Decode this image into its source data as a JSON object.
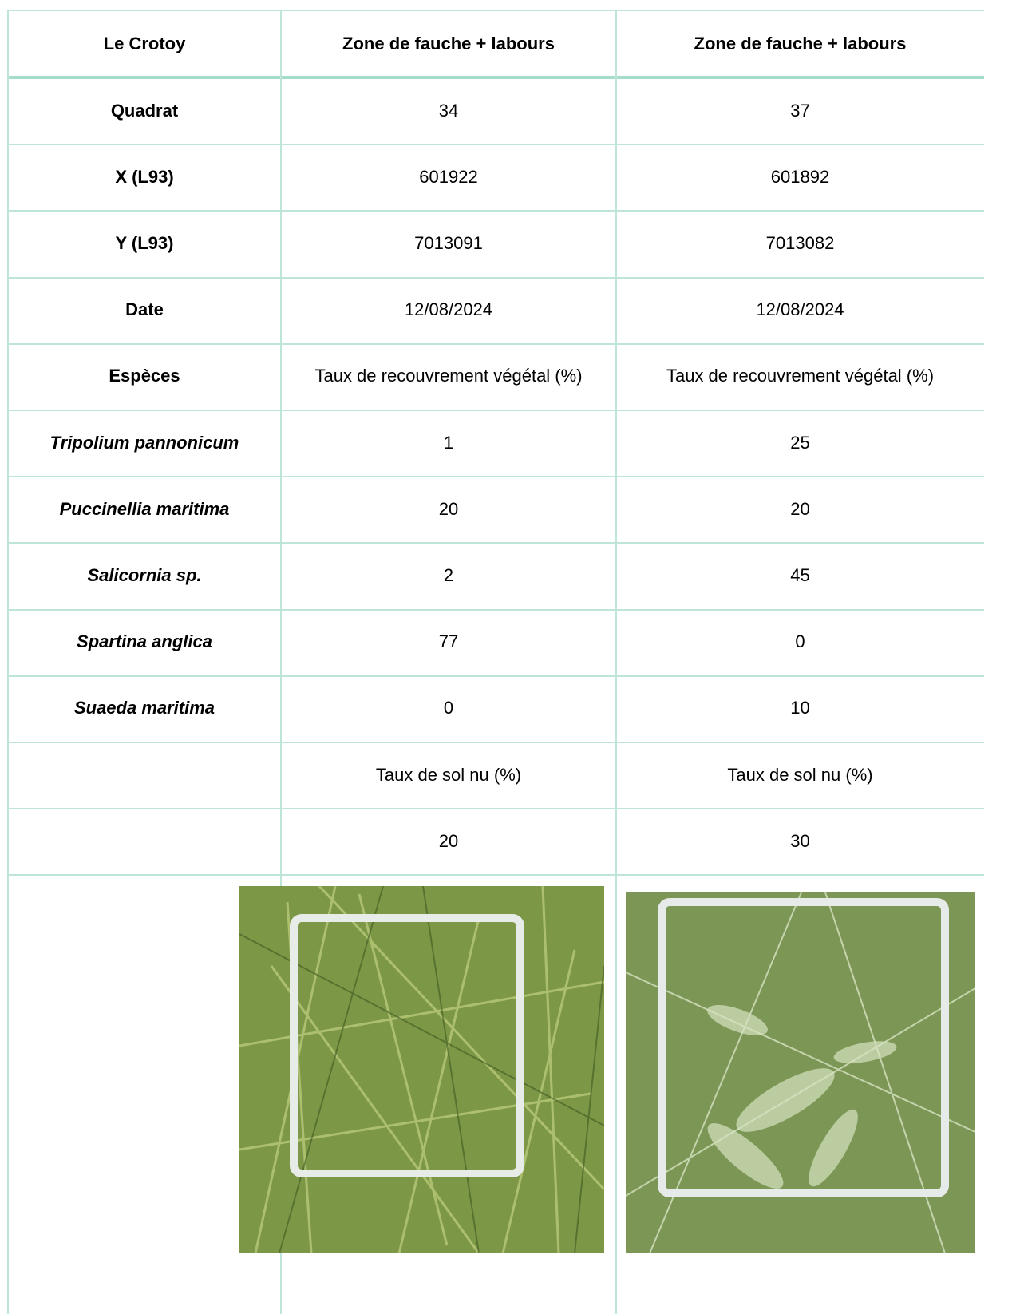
{
  "table": {
    "header": [
      "Le Crotoy",
      "Zone de fauche + labours",
      "Zone de fauche + labours"
    ],
    "rows": [
      [
        "Quadrat",
        "34",
        "37"
      ],
      [
        "X (L93)",
        "601922",
        "601892"
      ],
      [
        "Y (L93)",
        "7013091",
        "7013082"
      ],
      [
        "Date",
        "12/08/2024",
        "12/08/2024"
      ],
      [
        "Espèces",
        "Taux de recouvrement végétal (%)",
        "Taux de recouvrement végétal (%)"
      ],
      [
        "Tripolium pannonicum",
        "1",
        "25"
      ],
      [
        "Puccinellia maritima",
        "20",
        "20"
      ],
      [
        "Salicornia sp.",
        "2",
        "45"
      ],
      [
        "Spartina anglica",
        "77",
        "0"
      ],
      [
        "Suaeda maritima",
        "0",
        "10"
      ],
      [
        null,
        "Taux de sol nu (%)",
        "Taux de sol nu (%)"
      ],
      [
        null,
        "20",
        "30"
      ]
    ]
  }
}
